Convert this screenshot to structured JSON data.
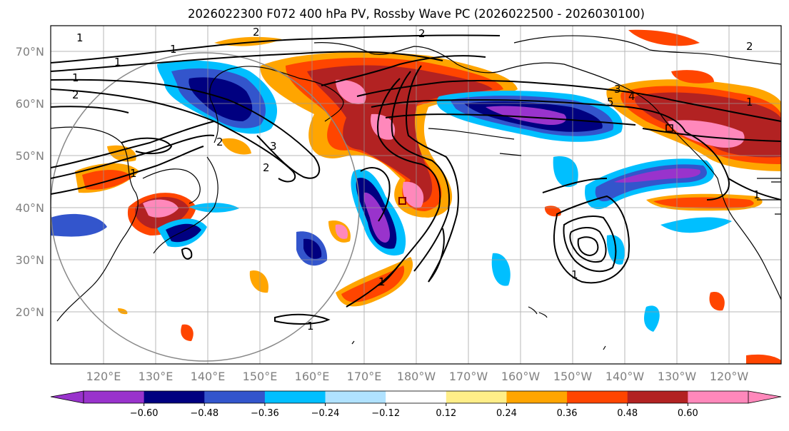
{
  "title": "2026022300 F072 400 hPa PV, Rossby Wave PC (2026022500 - 2026030100)",
  "lat_labels": [
    "70°N",
    "60°N",
    "50°N",
    "40°N",
    "30°N",
    "20°N"
  ],
  "lon_labels": [
    "120°E",
    "130°E",
    "140°E",
    "150°E",
    "160°E",
    "170°E",
    "180°W",
    "170°W",
    "160°W",
    "150°W",
    "140°W",
    "130°W",
    "120°W"
  ],
  "colorbar": {
    "ticks": [
      "−0.60",
      "−0.48",
      "−0.36",
      "−0.24",
      "−0.12",
      "0.12",
      "0.24",
      "0.36",
      "0.48",
      "0.60"
    ],
    "colors": [
      "#9933cc",
      "#000080",
      "#3355cc",
      "#00bfff",
      "#b0e2ff",
      "#ffffff",
      "#ffee88",
      "#ffa500",
      "#ff4500",
      "#b22222",
      "#ff88bb"
    ]
  },
  "contour_labels": [
    "1",
    "2",
    "1",
    "1",
    "1",
    "2",
    "2",
    "1",
    "3",
    "2",
    "2",
    "3",
    "4",
    "5",
    "1",
    "1",
    "1",
    "2",
    "1",
    "1"
  ]
}
